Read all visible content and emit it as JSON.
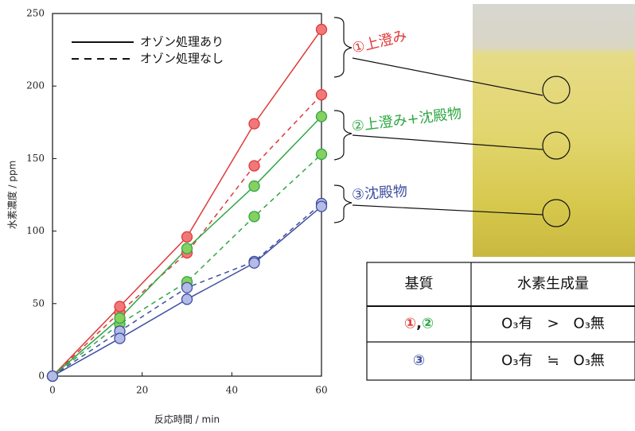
{
  "chart_data": {
    "type": "line",
    "xlabel": "反応時間 / min",
    "ylabel": "水素濃度 / ppm",
    "x": [
      0,
      15,
      30,
      45,
      60
    ],
    "xlim": [
      0,
      60
    ],
    "xticks": [
      0,
      20,
      40,
      60
    ],
    "ylim": [
      0,
      250
    ],
    "yticks": [
      0,
      50,
      100,
      150,
      200,
      250
    ],
    "legend": [
      {
        "label": "オゾン処理あり",
        "dashed": false
      },
      {
        "label": "オゾン処理なし",
        "dashed": true
      }
    ],
    "series": [
      {
        "color": "#e03a3a",
        "fill": "#f07878",
        "dashed": true,
        "values": [
          0,
          44,
          85,
          145,
          194
        ]
      },
      {
        "color": "#2ea844",
        "fill": "#86d060",
        "dashed": true,
        "values": [
          0,
          36,
          65,
          110,
          153
        ]
      },
      {
        "color": "#3f4fa0",
        "fill": "#b4bbe6",
        "dashed": true,
        "values": [
          0,
          31,
          61,
          79,
          119
        ]
      },
      {
        "color": "#e03a3a",
        "fill": "#f07878",
        "dashed": false,
        "values": [
          0,
          48,
          96,
          174,
          239
        ]
      },
      {
        "color": "#2ea844",
        "fill": "#86d060",
        "dashed": false,
        "values": [
          0,
          40,
          88,
          131,
          179
        ]
      },
      {
        "color": "#3f4fa0",
        "fill": "#b4bbe6",
        "dashed": false,
        "values": [
          0,
          26,
          53,
          78,
          117
        ]
      }
    ],
    "annotations": [
      {
        "text": "①上澄み",
        "color": "#e03a3a"
      },
      {
        "text": "②上澄み+沈殿物",
        "color": "#2ea844"
      },
      {
        "text": "③沈殿物",
        "color": "#3f4fa0"
      }
    ]
  },
  "table": {
    "header": [
      "基質",
      "水素生成量"
    ],
    "rows": [
      [
        [
          {
            "text": "①",
            "color": "#e03a3a"
          },
          {
            "text": ",",
            "color": "#222"
          },
          {
            "text": "②",
            "color": "#2ea844"
          }
        ],
        "O₃有　>　O₃無"
      ],
      [
        [
          {
            "text": "③",
            "color": "#3f4fa0"
          }
        ],
        "O₃有　≒　O₃無"
      ]
    ]
  }
}
